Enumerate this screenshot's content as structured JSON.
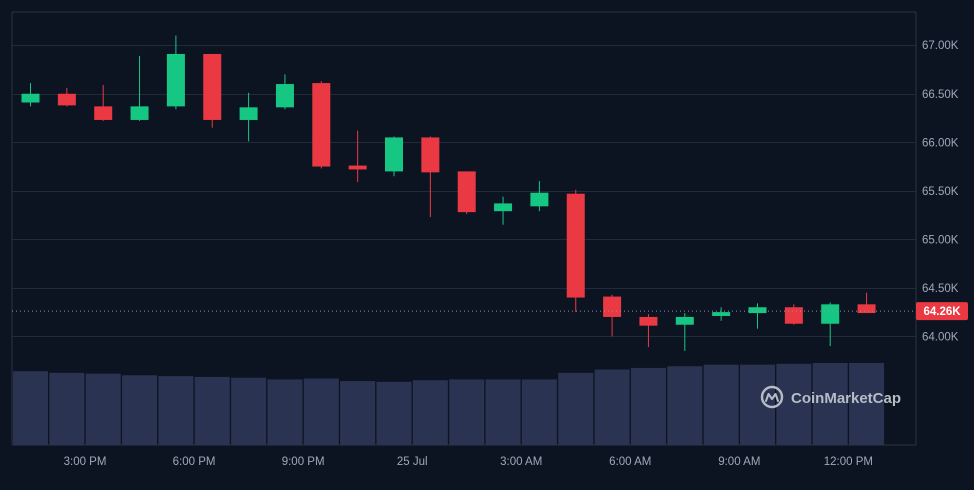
{
  "colors": {
    "background": "#0d1421",
    "grid": "#222b3a",
    "frame": "#2a3343",
    "up": "#16c784",
    "down": "#ea3943",
    "volume": "#2a3352",
    "axis_text": "#a1a7bb",
    "price_tag_bg": "#ea3943",
    "price_tag_text": "#ffffff",
    "watermark": "#b7bdc6"
  },
  "watermark": {
    "text": "CoinMarketCap",
    "icon": "coinmarketcap-logo-icon"
  },
  "chart_data": {
    "type": "candlestick",
    "title": "",
    "xlabel": "",
    "ylabel": "",
    "ylim": [
      63880,
      67260
    ],
    "y_ticks": [
      64000,
      64500,
      65000,
      65500,
      66000,
      66500,
      67000
    ],
    "y_tick_labels": [
      "64.00K",
      "64.50K",
      "65.00K",
      "65.50K",
      "66.00K",
      "66.50K",
      "67.00K"
    ],
    "x_ticks": [
      {
        "label": "3:00 PM",
        "index": 1.5
      },
      {
        "label": "6:00 PM",
        "index": 4.5
      },
      {
        "label": "9:00 PM",
        "index": 7.5
      },
      {
        "label": "25 Jul",
        "index": 10.5
      },
      {
        "label": "3:00 AM",
        "index": 13.5
      },
      {
        "label": "6:00 AM",
        "index": 16.5
      },
      {
        "label": "9:00 AM",
        "index": 19.5
      },
      {
        "label": "12:00 PM",
        "index": 22.5
      }
    ],
    "current_price": 64260,
    "current_price_label": "64.26K",
    "candles": [
      {
        "o": 66410,
        "h": 66610,
        "c": 66500,
        "l": 66370
      },
      {
        "o": 66500,
        "h": 66560,
        "c": 66380,
        "l": 66370
      },
      {
        "o": 66370,
        "h": 66590,
        "c": 66230,
        "l": 66220
      },
      {
        "o": 66230,
        "h": 66890,
        "c": 66370,
        "l": 66220
      },
      {
        "o": 66370,
        "h": 67100,
        "c": 66910,
        "l": 66340
      },
      {
        "o": 66910,
        "h": 66910,
        "c": 66230,
        "l": 66150
      },
      {
        "o": 66230,
        "h": 66510,
        "c": 66360,
        "l": 66010
      },
      {
        "o": 66360,
        "h": 66700,
        "c": 66600,
        "l": 66340
      },
      {
        "o": 66610,
        "h": 66630,
        "c": 65750,
        "l": 65730
      },
      {
        "o": 65760,
        "h": 66120,
        "c": 65720,
        "l": 65590
      },
      {
        "o": 65700,
        "h": 66060,
        "c": 66050,
        "l": 65650
      },
      {
        "o": 66050,
        "h": 66060,
        "c": 65690,
        "l": 65230
      },
      {
        "o": 65700,
        "h": 65700,
        "c": 65280,
        "l": 65260
      },
      {
        "o": 65290,
        "h": 65440,
        "c": 65370,
        "l": 65150
      },
      {
        "o": 65340,
        "h": 65600,
        "c": 65480,
        "l": 65290
      },
      {
        "o": 65470,
        "h": 65510,
        "c": 64400,
        "l": 64250
      },
      {
        "o": 64410,
        "h": 64430,
        "c": 64200,
        "l": 64000
      },
      {
        "o": 64200,
        "h": 64230,
        "c": 64110,
        "l": 63890
      },
      {
        "o": 64120,
        "h": 64240,
        "c": 64200,
        "l": 63850
      },
      {
        "o": 64210,
        "h": 64300,
        "c": 64250,
        "l": 64160
      },
      {
        "o": 64240,
        "h": 64340,
        "c": 64300,
        "l": 64080
      },
      {
        "o": 64300,
        "h": 64330,
        "c": 64130,
        "l": 64120
      },
      {
        "o": 64130,
        "h": 64350,
        "c": 64330,
        "l": 63900
      },
      {
        "o": 64330,
        "h": 64450,
        "c": 64240,
        "l": 64240
      }
    ],
    "volume": [
      0.9,
      0.88,
      0.87,
      0.85,
      0.84,
      0.83,
      0.82,
      0.8,
      0.81,
      0.78,
      0.77,
      0.79,
      0.8,
      0.8,
      0.8,
      0.88,
      0.92,
      0.94,
      0.96,
      0.98,
      0.98,
      0.99,
      1.0,
      1.0
    ]
  }
}
